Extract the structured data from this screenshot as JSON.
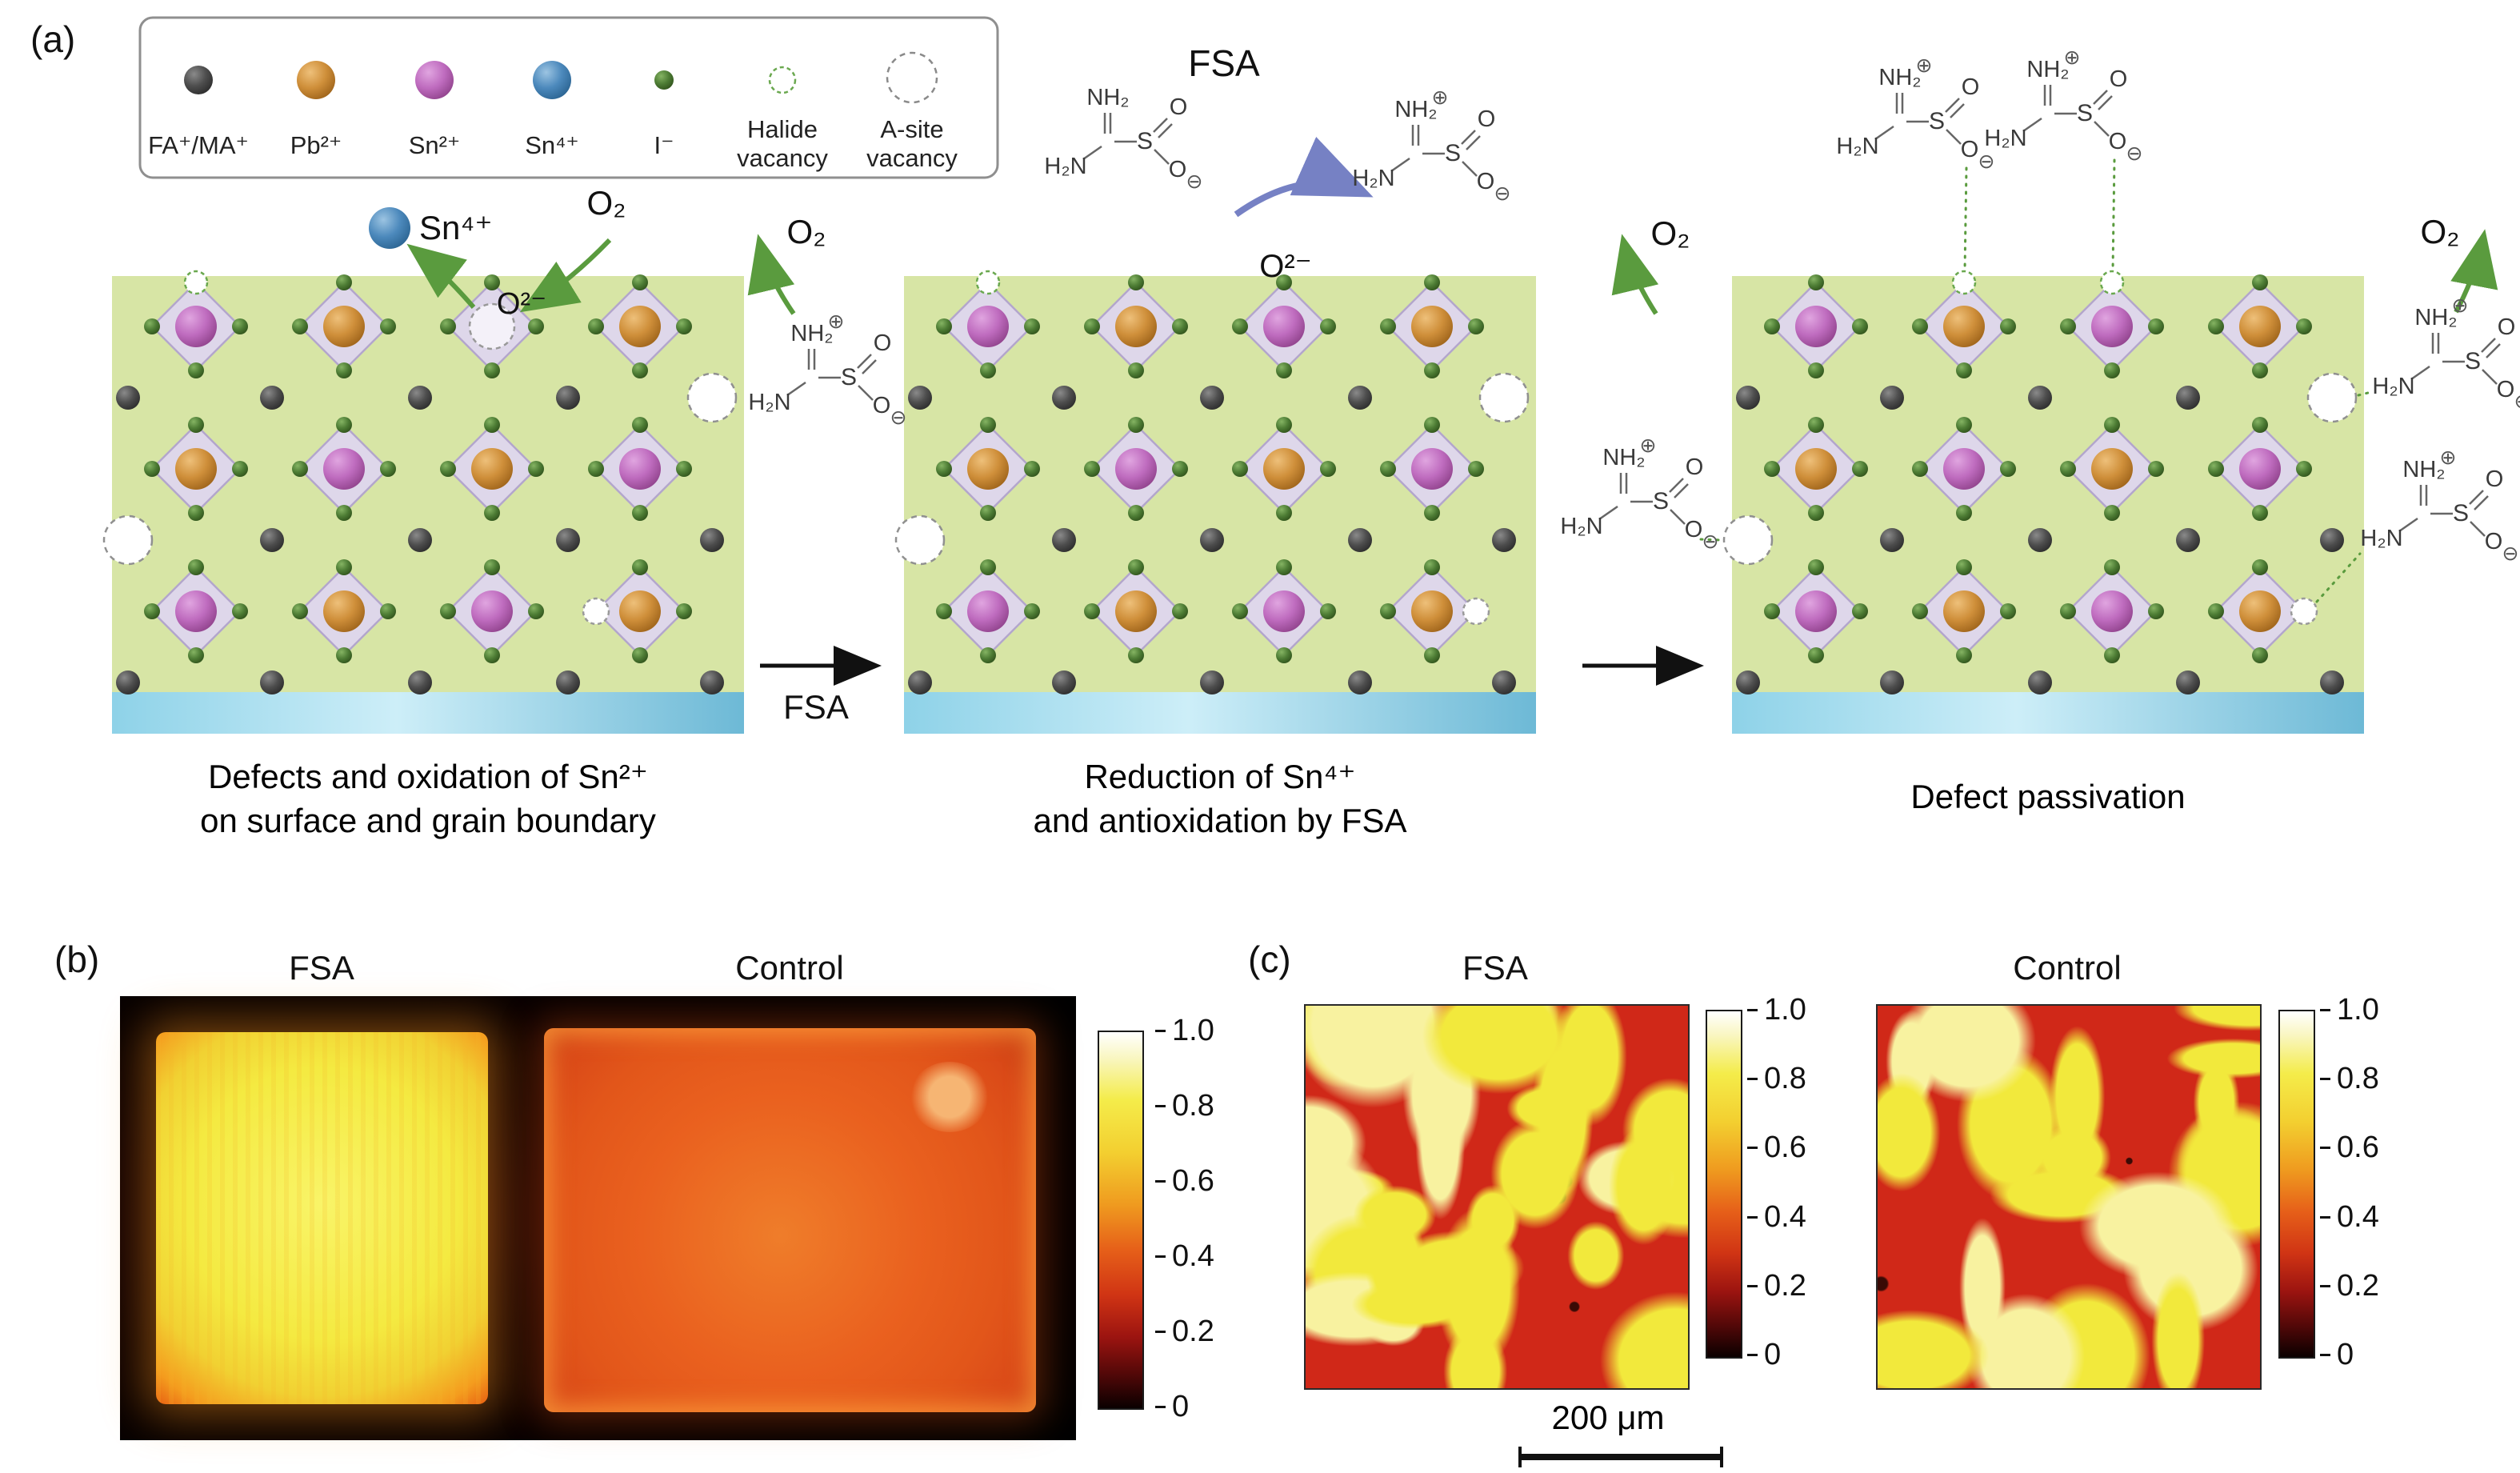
{
  "panel_a": {
    "label": "(a)",
    "legend": {
      "items": [
        {
          "line1": "FA⁺/MA⁺",
          "color": "#4d4d4d"
        },
        {
          "line1": "Pb²⁺",
          "color": "#cf8f3a"
        },
        {
          "line1": "Sn²⁺",
          "color": "#bf6cbf"
        },
        {
          "line1": "Sn⁴⁺",
          "color": "#4c89bc"
        },
        {
          "line1": "I⁻",
          "color": "#4e7d35"
        },
        {
          "line1": "Halide",
          "line2": "vacancy",
          "color": "#6aa84f"
        },
        {
          "line1": "A-site",
          "line2": "vacancy",
          "color": "#8a8a8a"
        }
      ]
    },
    "fsa_title": "FSA",
    "annotations": {
      "sn4": "Sn⁴⁺",
      "o2": "O₂",
      "o2minus": "O²⁻",
      "fsa_arrow": "FSA"
    },
    "molecule": {
      "h2n": "H₂N",
      "nh2": "NH₂",
      "s": "S",
      "o": "O",
      "plus": "⊕",
      "minus": "⊖"
    },
    "captions": [
      {
        "line1": "Defects and oxidation of Sn²⁺",
        "line2": "on surface and grain boundary"
      },
      {
        "line1": "Reduction of Sn⁴⁺",
        "line2": "and antioxidation by FSA"
      },
      {
        "line1": "Defect passivation",
        "line2": ""
      }
    ]
  },
  "panel_b": {
    "label": "(b)",
    "titles": [
      "FSA",
      "Control"
    ],
    "colorbar_ticks": [
      "1.0",
      "0.8",
      "0.6",
      "0.4",
      "0.2",
      "0"
    ]
  },
  "panel_c": {
    "label": "(c)",
    "titles": [
      "FSA",
      "Control"
    ],
    "colorbar_ticks": [
      "1.0",
      "0.8",
      "0.6",
      "0.4",
      "0.2",
      "0"
    ],
    "scalebar": "200 μm"
  },
  "colors": {
    "lattice_background": "#d7e5a5",
    "octahedron": "#ded7ea",
    "substrate": "#8ed2e8",
    "arrow_green": "#5a9b3e",
    "arrow_blue": "#5f6cba",
    "map_base_red": "#d02818",
    "map_yellow": "#f2e93c"
  }
}
